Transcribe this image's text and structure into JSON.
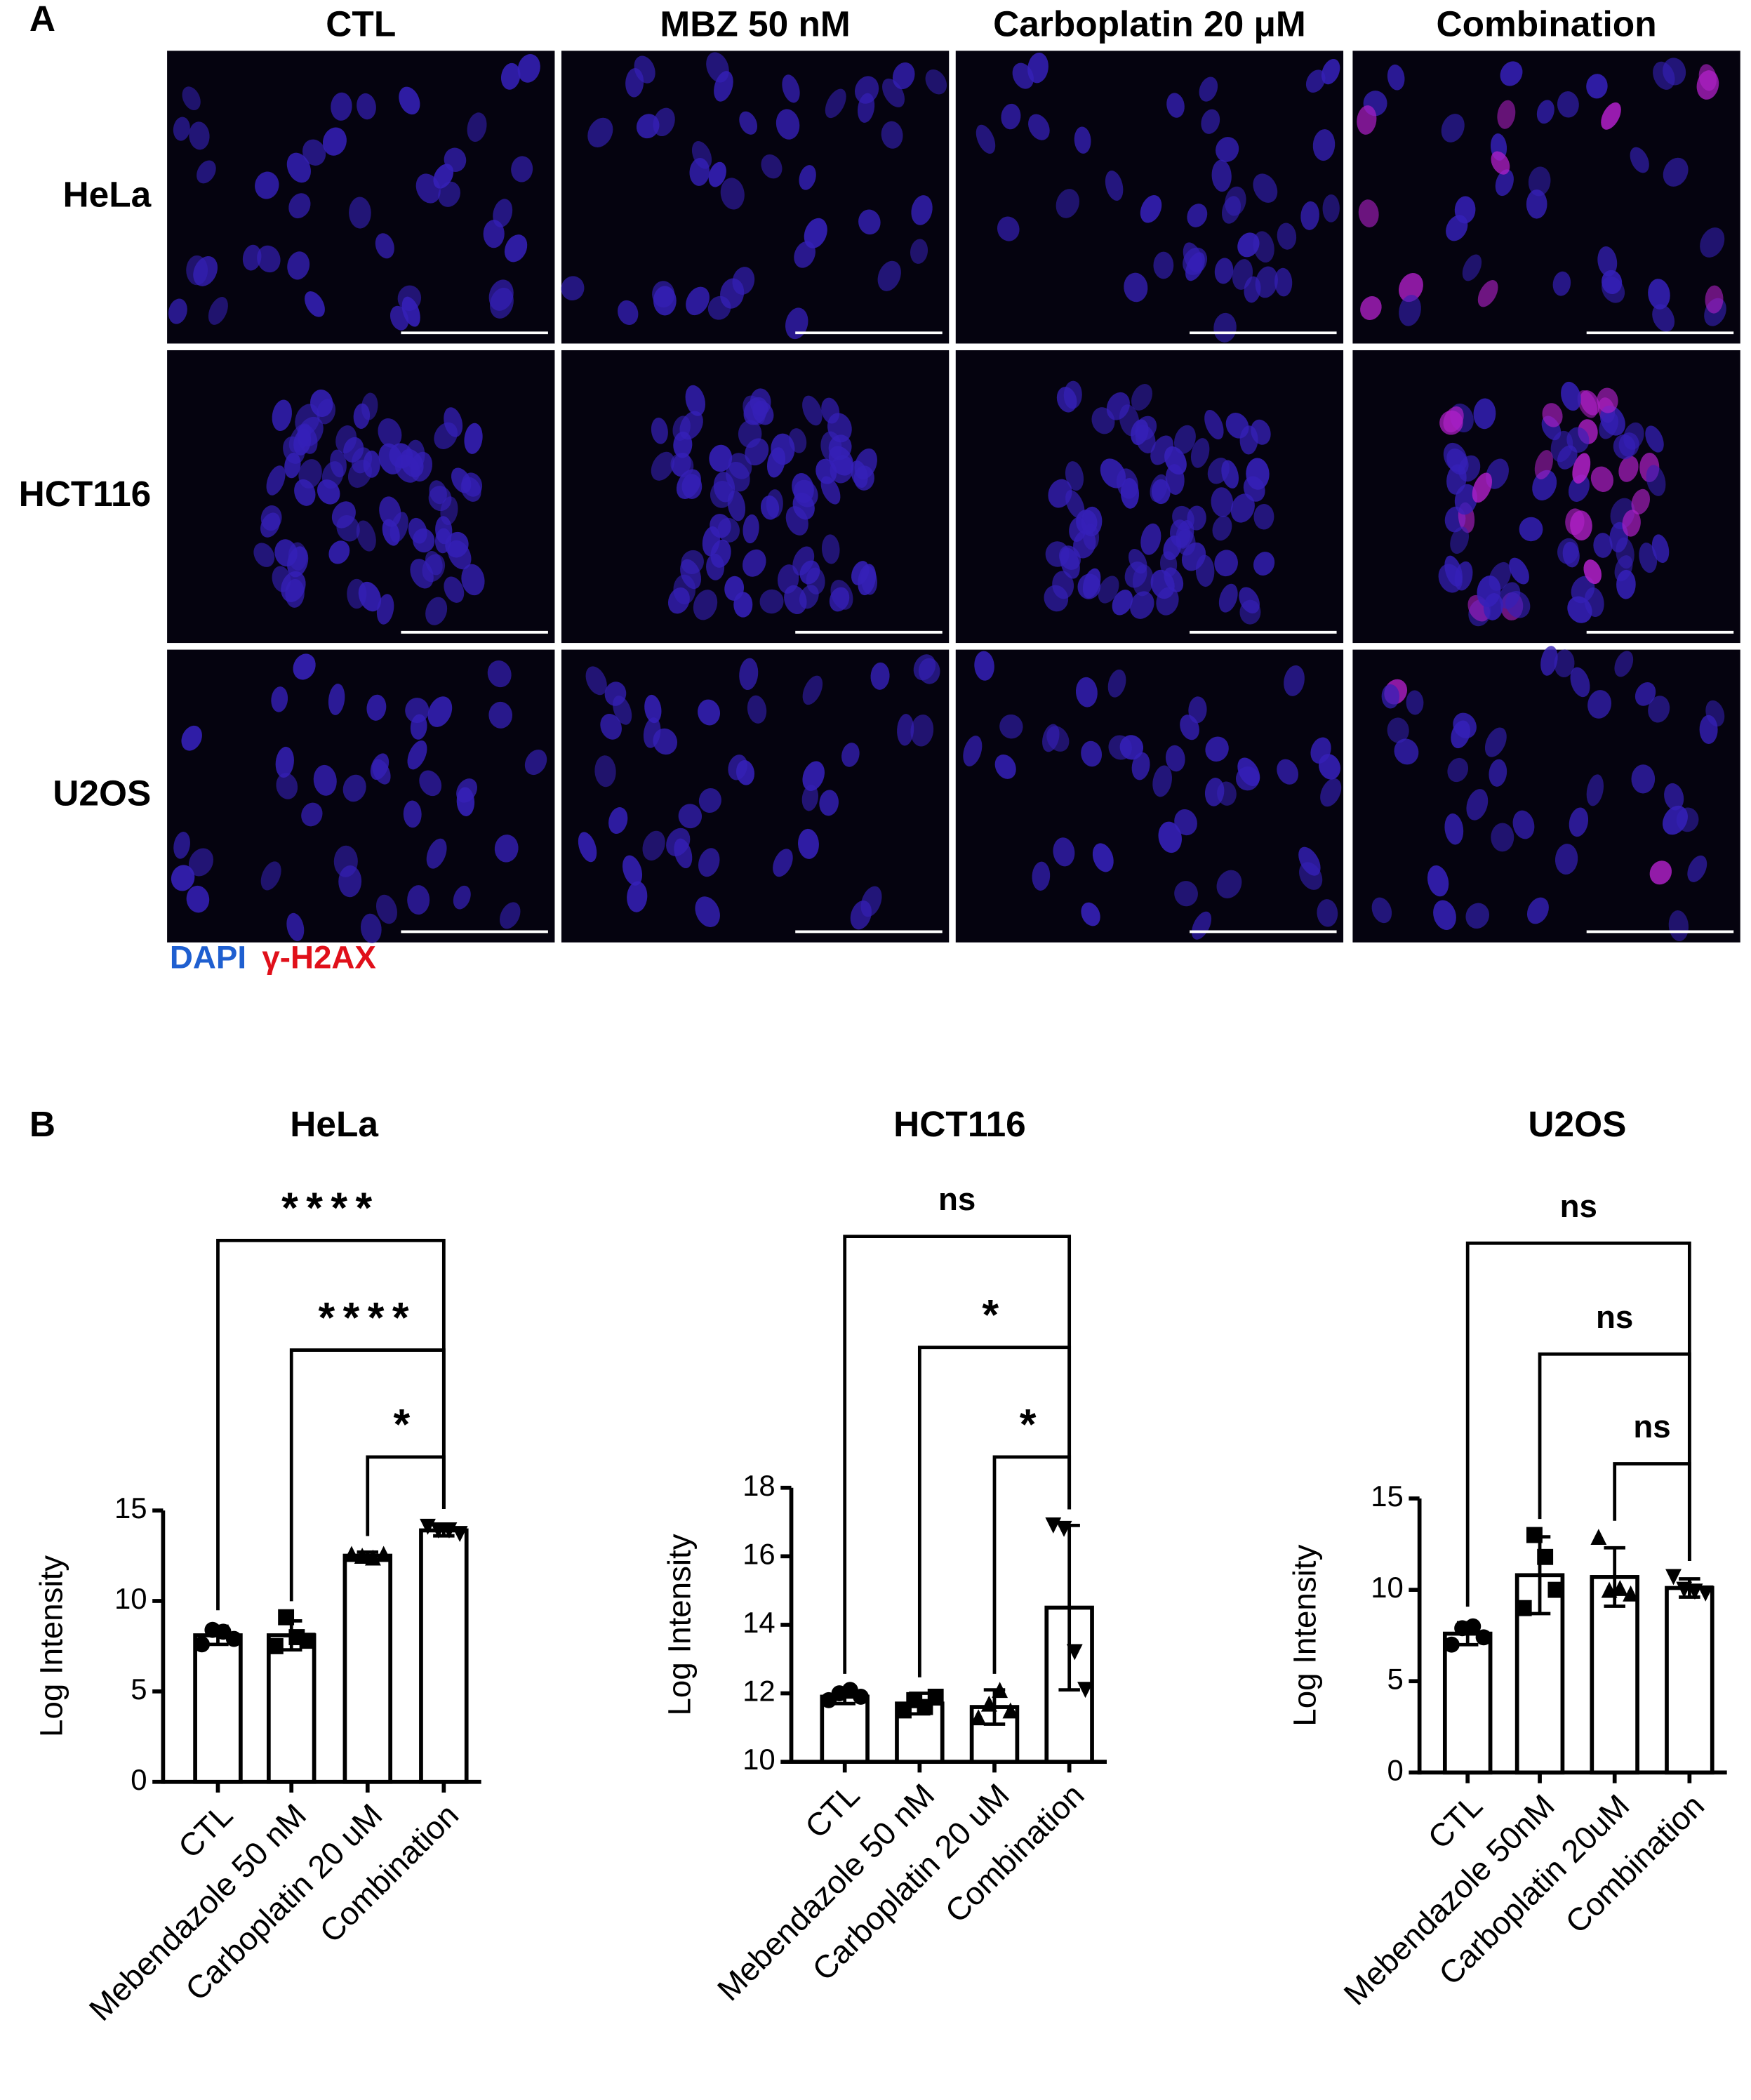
{
  "panel_a": {
    "label": "A",
    "columns": [
      "CTL",
      "MBZ 50 nM",
      "Carboplatin 20 μM",
      "Combination"
    ],
    "rows": [
      "HeLa",
      "HCT116",
      "U2OS"
    ],
    "legend": [
      "DAPI",
      "γ-H2AX"
    ]
  },
  "panel_b_label": "B",
  "chart_data": [
    {
      "type": "bar",
      "title": "HeLa",
      "y_label": "Log Intensity",
      "categories": [
        "CTL",
        "Mebendazole 50 nM",
        "Carboplatin 20 uM",
        "Combination"
      ],
      "values": [
        8.1,
        8.1,
        12.5,
        13.9
      ],
      "errors": [
        0.5,
        0.8,
        0.2,
        0.3
      ],
      "points": [
        [
          7.6,
          8.4,
          8.3,
          7.9
        ],
        [
          7.5,
          9.1,
          8.0,
          7.8
        ],
        [
          12.6,
          12.5,
          12.4,
          12.6
        ],
        [
          14.1,
          13.9,
          13.9,
          13.7
        ]
      ],
      "markers": [
        "circle",
        "square",
        "triangle",
        "triangle-down"
      ],
      "color": "#ffffff",
      "ylim": [
        0,
        15
      ],
      "yticks": [
        0,
        5,
        10,
        15
      ],
      "comparisons": [
        {
          "groups": [
            "CTL",
            "Combination"
          ],
          "label": "****"
        },
        {
          "groups": [
            "Mebendazole 50 nM",
            "Combination"
          ],
          "label": "****"
        },
        {
          "groups": [
            "Carboplatin 20 uM",
            "Combination"
          ],
          "label": "*"
        }
      ]
    },
    {
      "type": "bar",
      "title": "HCT116",
      "y_label": "Log Intensity",
      "categories": [
        "CTL",
        "Mebendazole 50 nM",
        "Carboplatin 20 uM",
        "Combination"
      ],
      "values": [
        11.9,
        11.7,
        11.6,
        14.5
      ],
      "errors": [
        0.2,
        0.3,
        0.5,
        2.4
      ],
      "points": [
        [
          11.8,
          12.0,
          12.1,
          11.9
        ],
        [
          11.5,
          11.8,
          11.6,
          11.9
        ],
        [
          11.3,
          11.7,
          12.1,
          11.5
        ],
        [
          16.9,
          16.8,
          13.2,
          12.1
        ]
      ],
      "markers": [
        "circle",
        "square",
        "triangle",
        "triangle-down"
      ],
      "color": "#ffffff",
      "ylim": [
        10,
        18
      ],
      "yticks": [
        10,
        12,
        14,
        16,
        18
      ],
      "comparisons": [
        {
          "groups": [
            "CTL",
            "Combination"
          ],
          "label": "ns"
        },
        {
          "groups": [
            "Mebendazole 50 nM",
            "Combination"
          ],
          "label": "*"
        },
        {
          "groups": [
            "Carboplatin 20 uM",
            "Combination"
          ],
          "label": "*"
        }
      ]
    },
    {
      "type": "bar",
      "title": "U2OS",
      "y_label": "Log Intensity",
      "categories": [
        "CTL",
        "Mebendazole 50nM",
        "Carboplatin 20uM",
        "Combination"
      ],
      "values": [
        7.6,
        10.8,
        10.7,
        10.1
      ],
      "errors": [
        0.6,
        2.1,
        1.6,
        0.5
      ],
      "points": [
        [
          7.0,
          7.9,
          8.0,
          7.4
        ],
        [
          9.0,
          13.0,
          11.8,
          10.0
        ],
        [
          12.9,
          10.0,
          10.1,
          9.8
        ],
        [
          10.7,
          10.0,
          9.9,
          9.8
        ]
      ],
      "markers": [
        "circle",
        "square",
        "triangle",
        "triangle-down"
      ],
      "color": "#ffffff",
      "ylim": [
        0,
        15
      ],
      "yticks": [
        0,
        5,
        10,
        15
      ],
      "comparisons": [
        {
          "groups": [
            "CTL",
            "Combination"
          ],
          "label": "ns"
        },
        {
          "groups": [
            "Mebendazole 50nM",
            "Combination"
          ],
          "label": "ns"
        },
        {
          "groups": [
            "Carboplatin 20uM",
            "Combination"
          ],
          "label": "ns"
        }
      ]
    }
  ]
}
